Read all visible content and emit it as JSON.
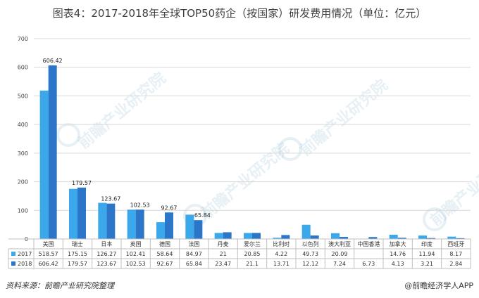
{
  "title": "图表4：2017-2018年全球TOP50药企（按国家）研发费用情况（单位：亿元）",
  "source_left": "资料来源：前瞻产业研究院整理",
  "source_right": "@前瞻经济学人APP",
  "watermark": "前瞻产业研究院",
  "colors": {
    "series2017": "#3aa8ea",
    "series2018": "#2b76c8",
    "grid": "#d9d9d9",
    "axis": "#bfbfbf"
  },
  "chart_data": {
    "type": "bar",
    "title": "图表4：2017-2018年全球TOP50药企（按国家）研发费用情况（单位：亿元）",
    "categories": [
      "美国",
      "瑞士",
      "日本",
      "英国",
      "德国",
      "法国",
      "丹麦",
      "爱尔兰",
      "比利时",
      "以色列",
      "澳大利亚",
      "中国香港",
      "加拿大",
      "印度",
      "西班牙"
    ],
    "series": [
      {
        "name": "2017",
        "values": [
          518.57,
          175.15,
          126.27,
          102.41,
          58.64,
          84.97,
          21,
          20.85,
          4.22,
          49.73,
          20.09,
          null,
          14.76,
          11.94,
          8.17
        ]
      },
      {
        "name": "2018",
        "values": [
          606.42,
          179.57,
          123.67,
          102.53,
          92.67,
          65.84,
          23.47,
          21.1,
          13.71,
          12.12,
          7.24,
          6.73,
          4.13,
          3.21,
          2.84
        ]
      }
    ],
    "table_text": {
      "2017": [
        "518.57",
        "175.15",
        "126.27",
        "102.41",
        "58.64",
        "84.97",
        "21",
        "20.85",
        "4.22",
        "49.73",
        "20.09",
        "",
        "14.76",
        "11.94",
        "8.17"
      ],
      "2018": [
        "606.42",
        "179.57",
        "123.67",
        "102.53",
        "92.67",
        "65.84",
        "23.47",
        "21.1",
        "13.71",
        "12.12",
        "7.24",
        "6.73",
        "4.13",
        "3.21",
        "2.84"
      ]
    },
    "data_labels_2018": [
      "606.42",
      "179.57",
      "123.67",
      "102.53",
      "92.67",
      "65.84"
    ],
    "yticks": [
      0,
      100,
      200,
      300,
      400,
      500,
      600,
      700
    ],
    "ylim": [
      0,
      700
    ],
    "grid": true,
    "legend": "data-table-left"
  }
}
